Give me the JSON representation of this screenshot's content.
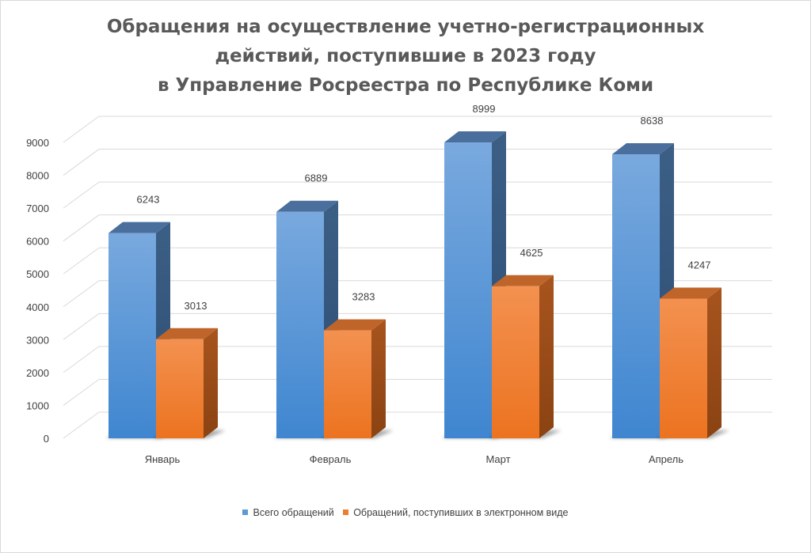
{
  "chart_data": {
    "type": "bar",
    "title_lines": [
      "Обращения на осуществление учетно-регистрационных",
      "действий, поступившие в 2023 году",
      "в Управление Росреестра по Республике Коми"
    ],
    "categories": [
      "Январь",
      "Февраль",
      "Март",
      "Апрель"
    ],
    "series": [
      {
        "name": "Всего обращений",
        "values": [
          6243,
          6889,
          8999,
          8638
        ],
        "color": "#5b9bd5"
      },
      {
        "name": "Обращений, поступивших в электронном виде",
        "values": [
          3013,
          3283,
          4625,
          4247
        ],
        "color": "#ed7d31"
      }
    ],
    "ylim": [
      0,
      9000
    ],
    "yticks": [
      0,
      1000,
      2000,
      3000,
      4000,
      5000,
      6000,
      7000,
      8000,
      9000
    ],
    "grid": true,
    "legend_position": "bottom",
    "style": "3d-clustered-column"
  }
}
